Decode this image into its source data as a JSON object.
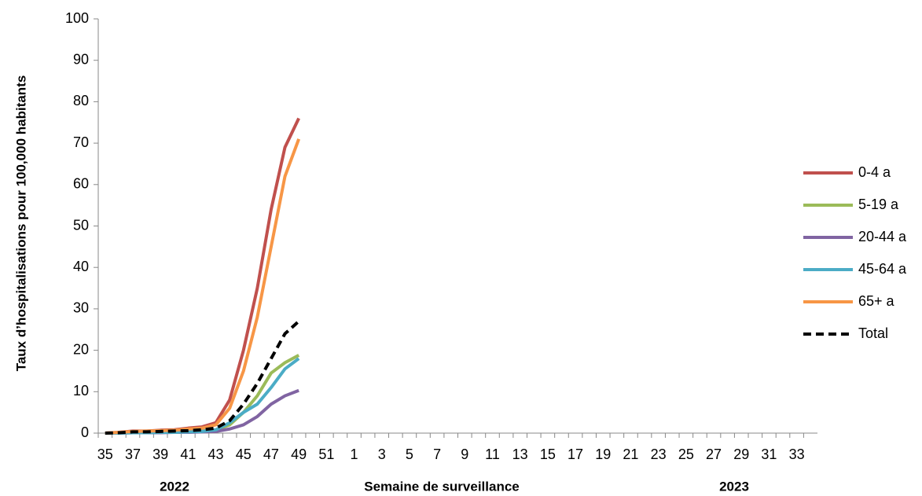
{
  "chart_data": {
    "type": "line",
    "y_label": "Taux d’hospitalisations pour 100,000 habitants",
    "x_label": "Semaine de surveillance",
    "annotations": [
      "2022",
      "2023"
    ],
    "categories": [
      "35",
      null,
      "37",
      null,
      "39",
      null,
      "41",
      null,
      "43",
      null,
      "45",
      null,
      "47",
      null,
      "49",
      null,
      "51",
      null,
      "1",
      null,
      "3",
      null,
      "5",
      null,
      "7",
      null,
      "9",
      null,
      "11",
      null,
      "13",
      null,
      "15",
      null,
      "17",
      null,
      "19",
      null,
      "21",
      null,
      "23",
      null,
      "25",
      null,
      "27",
      null,
      "29",
      null,
      "31",
      null,
      "33",
      null
    ],
    "series": [
      {
        "name": "0-4 a",
        "color": "#c0504d",
        "values": [
          0,
          0.2,
          0.5,
          0.5,
          0.7,
          0.8,
          1.2,
          1.5,
          2.5,
          8,
          20,
          35,
          54,
          69,
          76,
          null,
          null,
          null,
          null,
          null,
          null,
          null,
          null,
          null,
          null,
          null,
          null,
          null,
          null,
          null,
          null,
          null,
          null,
          null,
          null,
          null,
          null,
          null,
          null,
          null,
          null,
          null,
          null,
          null,
          null,
          null,
          null,
          null,
          null,
          null,
          null,
          null
        ]
      },
      {
        "name": "5-19 a",
        "color": "#9bbb59",
        "values": [
          0,
          0,
          0.2,
          0.2,
          0.3,
          0.3,
          0.4,
          0.5,
          0.8,
          2,
          5,
          9,
          14.5,
          17,
          18.8,
          null,
          null,
          null,
          null,
          null,
          null,
          null,
          null,
          null,
          null,
          null,
          null,
          null,
          null,
          null,
          null,
          null,
          null,
          null,
          null,
          null,
          null,
          null,
          null,
          null,
          null,
          null,
          null,
          null,
          null,
          null,
          null,
          null,
          null,
          null,
          null,
          null
        ]
      },
      {
        "name": "20-44 a",
        "color": "#8064a2",
        "values": [
          0,
          0,
          0.1,
          0.1,
          0.1,
          0.2,
          0.2,
          0.3,
          0.4,
          1,
          2,
          4,
          7,
          9,
          10.3,
          null,
          null,
          null,
          null,
          null,
          null,
          null,
          null,
          null,
          null,
          null,
          null,
          null,
          null,
          null,
          null,
          null,
          null,
          null,
          null,
          null,
          null,
          null,
          null,
          null,
          null,
          null,
          null,
          null,
          null,
          null,
          null,
          null,
          null,
          null,
          null,
          null
        ]
      },
      {
        "name": "45-64 a",
        "color": "#4bacc6",
        "values": [
          0,
          0,
          0.1,
          0.1,
          0.2,
          0.2,
          0.3,
          0.4,
          0.8,
          2.5,
          5,
          7,
          11,
          15.5,
          18,
          null,
          null,
          null,
          null,
          null,
          null,
          null,
          null,
          null,
          null,
          null,
          null,
          null,
          null,
          null,
          null,
          null,
          null,
          null,
          null,
          null,
          null,
          null,
          null,
          null,
          null,
          null,
          null,
          null,
          null,
          null,
          null,
          null,
          null,
          null,
          null,
          null
        ]
      },
      {
        "name": "65+ a",
        "color": "#f79646",
        "values": [
          0,
          0.2,
          0.4,
          0.5,
          0.6,
          0.7,
          1,
          1.2,
          2,
          6,
          15,
          28,
          45,
          62,
          71,
          null,
          null,
          null,
          null,
          null,
          null,
          null,
          null,
          null,
          null,
          null,
          null,
          null,
          null,
          null,
          null,
          null,
          null,
          null,
          null,
          null,
          null,
          null,
          null,
          null,
          null,
          null,
          null,
          null,
          null,
          null,
          null,
          null,
          null,
          null,
          null,
          null
        ]
      },
      {
        "name": "Total",
        "color": "#000000",
        "dashed": true,
        "values": [
          0,
          0.1,
          0.3,
          0.3,
          0.4,
          0.5,
          0.6,
          0.8,
          1.2,
          3,
          7,
          12,
          18,
          24,
          27,
          null,
          null,
          null,
          null,
          null,
          null,
          null,
          null,
          null,
          null,
          null,
          null,
          null,
          null,
          null,
          null,
          null,
          null,
          null,
          null,
          null,
          null,
          null,
          null,
          null,
          null,
          null,
          null,
          null,
          null,
          null,
          null,
          null,
          null,
          null,
          null,
          null
        ]
      }
    ],
    "ylim": [
      0,
      100
    ],
    "yticks": [
      0,
      10,
      20,
      30,
      40,
      50,
      60,
      70,
      80,
      90,
      100
    ],
    "grid": false,
    "legend": "right"
  }
}
